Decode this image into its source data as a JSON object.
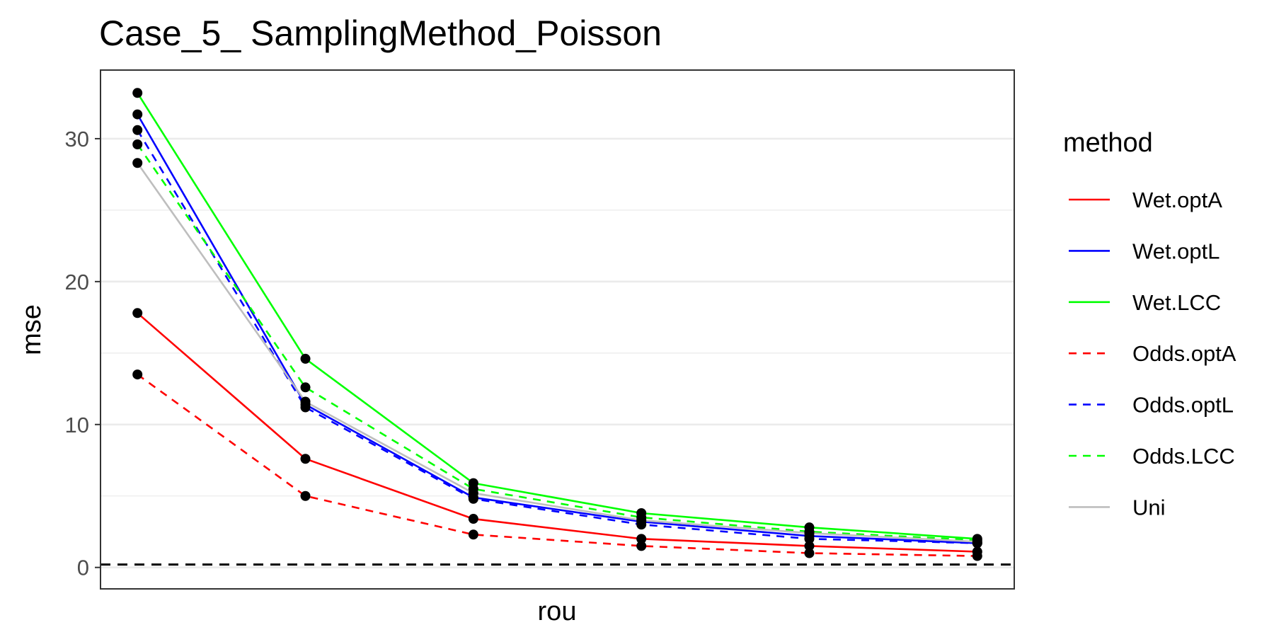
{
  "chart_data": {
    "type": "line",
    "title": "Case_5_ SamplingMethod_Poisson",
    "xlabel": "rou",
    "ylabel": "mse",
    "x": [
      1,
      2,
      3,
      4,
      5,
      6
    ],
    "x_tick_labels": [],
    "y_ticks": [
      0,
      10,
      20,
      30
    ],
    "ylim": [
      -1.5,
      34.8
    ],
    "grid": true,
    "reference_line": {
      "y": 0.2,
      "style": "dashed",
      "color": "#000000"
    },
    "legend": {
      "title": "method",
      "position": "right"
    },
    "series": [
      {
        "name": "Wet.optA",
        "color": "#ff0000",
        "dash": "solid",
        "values": [
          17.8,
          7.6,
          3.4,
          2.0,
          1.5,
          1.1
        ]
      },
      {
        "name": "Wet.optL",
        "color": "#0000ff",
        "dash": "solid",
        "values": [
          31.7,
          11.4,
          4.9,
          3.2,
          2.2,
          1.7
        ]
      },
      {
        "name": "Wet.LCC",
        "color": "#00ff00",
        "dash": "solid",
        "values": [
          33.2,
          14.6,
          5.9,
          3.8,
          2.8,
          2.0
        ]
      },
      {
        "name": "Odds.optA",
        "color": "#ff0000",
        "dash": "dashed",
        "values": [
          13.5,
          5.0,
          2.3,
          1.5,
          1.0,
          0.8
        ]
      },
      {
        "name": "Odds.optL",
        "color": "#0000ff",
        "dash": "dashed",
        "values": [
          30.6,
          11.2,
          4.8,
          3.0,
          2.0,
          1.7
        ]
      },
      {
        "name": "Odds.LCC",
        "color": "#00ff00",
        "dash": "dashed",
        "values": [
          29.6,
          12.6,
          5.5,
          3.5,
          2.5,
          1.9
        ]
      },
      {
        "name": "Uni",
        "color": "#bebebe",
        "dash": "solid",
        "values": [
          28.3,
          11.6,
          5.2,
          3.3,
          2.4,
          1.8
        ]
      }
    ]
  }
}
